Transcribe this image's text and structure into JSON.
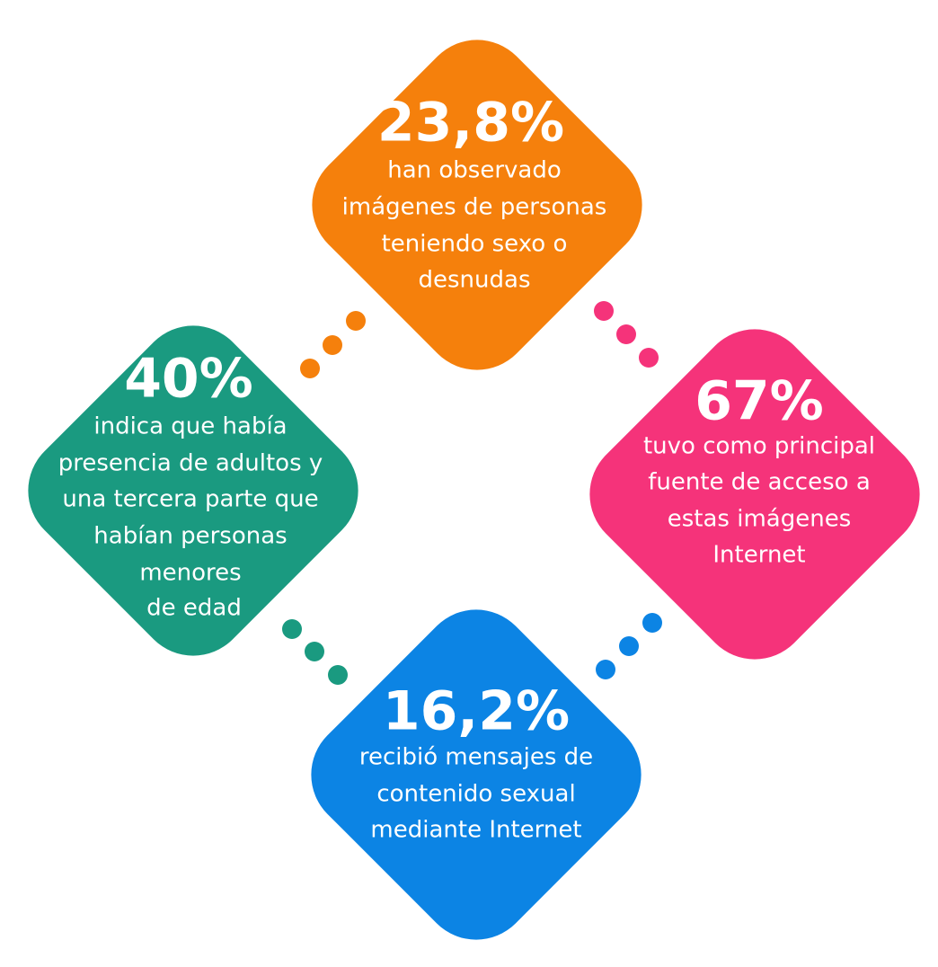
{
  "items": [
    {
      "value": "23,8%",
      "lines": [
        "han observado",
        "imágenes de personas",
        "teniendo sexo o",
        "desnudas"
      ]
    },
    {
      "value": "40%",
      "lines": [
        "indica que había",
        "presencia de adultos y",
        "una tercera parte que",
        "habían personas",
        "menores",
        "de edad"
      ]
    },
    {
      "value": "67%",
      "lines": [
        "tuvo como principal",
        "fuente de acceso a",
        "estas imágenes",
        "Internet"
      ]
    },
    {
      "value": "16,2%",
      "lines": [
        "recibió mensajes de",
        "contenido sexual",
        "mediante Internet"
      ]
    }
  ]
}
